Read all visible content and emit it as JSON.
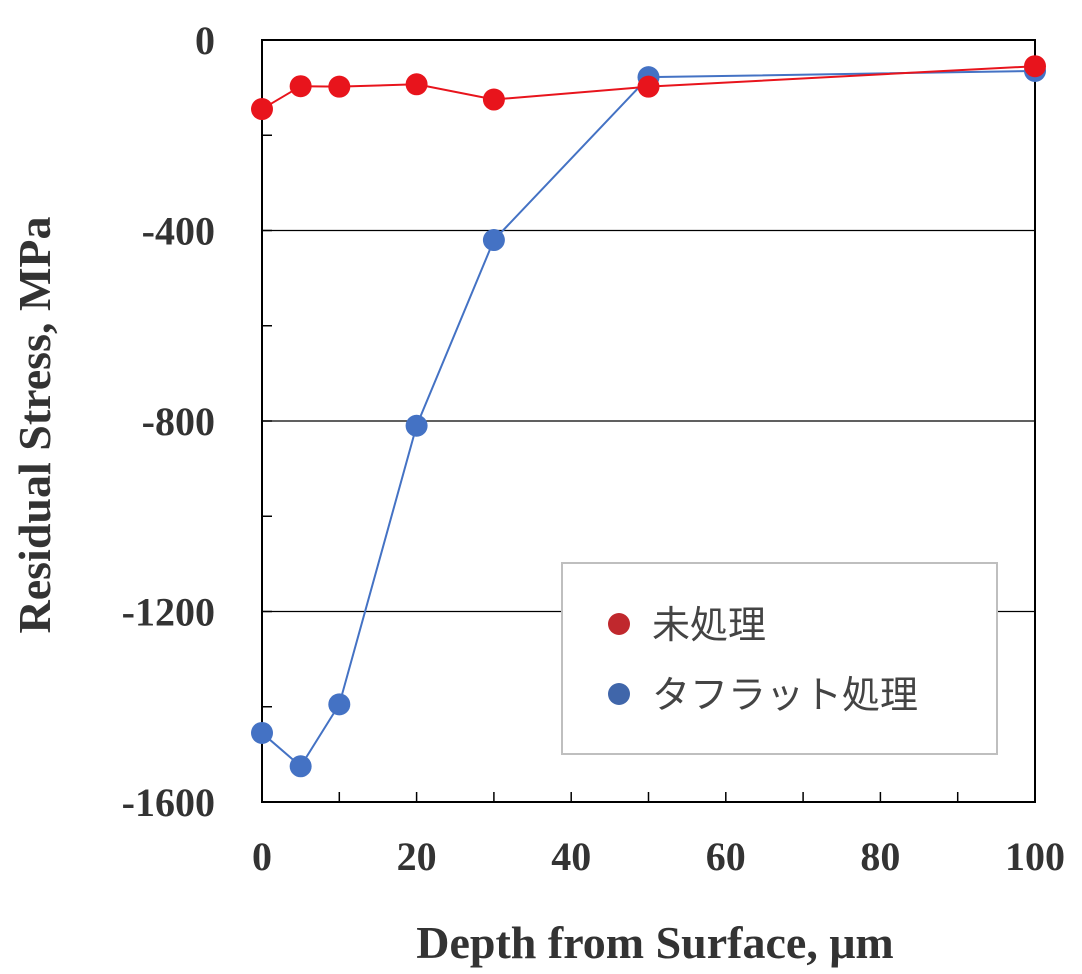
{
  "chart_data": {
    "type": "line",
    "xlabel": "Depth from Surface, μm",
    "ylabel": "Residual Stress, MPa",
    "xlim": [
      0,
      100
    ],
    "ylim": [
      -1600,
      0
    ],
    "xticks": [
      0,
      20,
      40,
      60,
      80,
      100
    ],
    "xtick_labels": [
      "0",
      "20",
      "40",
      "60",
      "80",
      "100"
    ],
    "yticks": [
      0,
      -400,
      -800,
      -1200,
      -1600
    ],
    "ytick_labels": [
      "0",
      "-400",
      "-800",
      "-1200",
      "-1600"
    ],
    "grid": "horizontal major gridlines at -400, -800, -1200",
    "legend_position": "lower-right",
    "series": [
      {
        "name": "未処理",
        "color": "#e8141c",
        "marker_color": "#e8141c",
        "x": [
          0,
          5,
          10,
          20,
          30,
          50,
          100
        ],
        "y": [
          -145,
          -97,
          -98,
          -93,
          -125,
          -98,
          -55
        ]
      },
      {
        "name": "タフラット処理",
        "color": "#4472c4",
        "marker_color": "#4472c4",
        "x": [
          0,
          5,
          10,
          20,
          30,
          50,
          100
        ],
        "y": [
          -1455,
          -1525,
          -1395,
          -810,
          -420,
          -78,
          -65
        ]
      }
    ],
    "legend_marker_colors": [
      "#c0282d",
      "#4066aa"
    ]
  }
}
